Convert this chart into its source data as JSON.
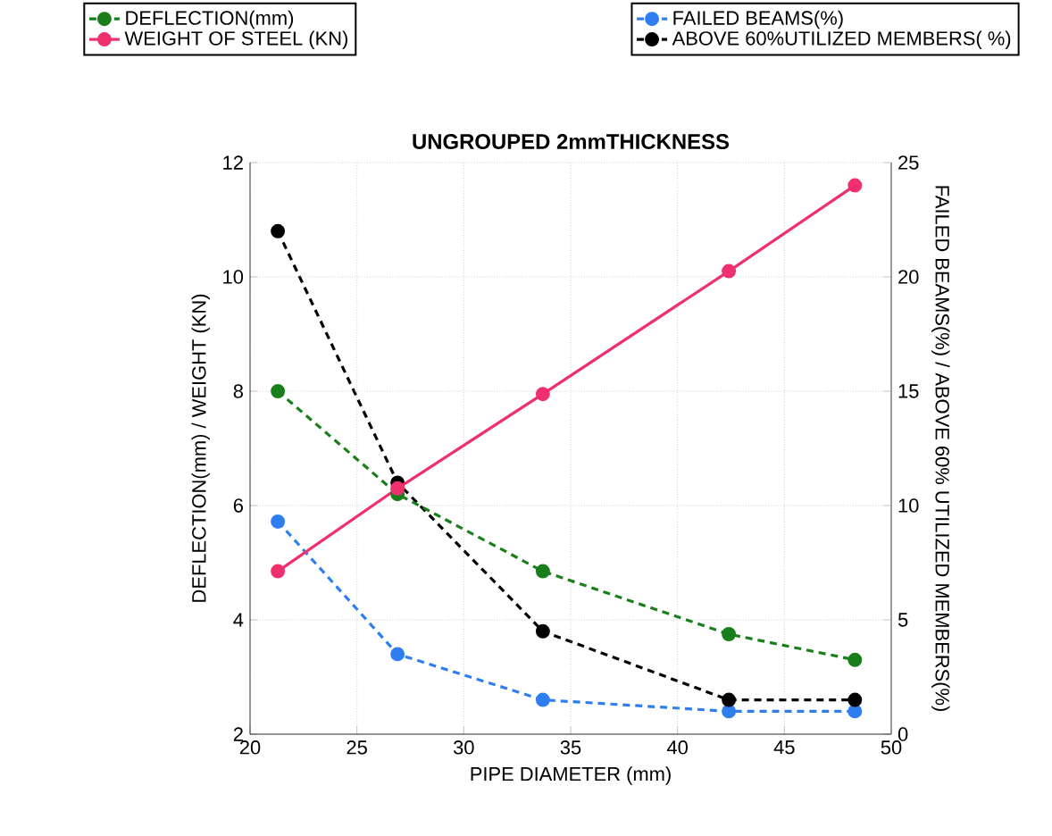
{
  "chart_data": {
    "type": "line",
    "title": "UNGROUPED 2mmTHICKNESS",
    "xlabel": "PIPE DIAMETER (mm)",
    "ylabel": "DEFLECTION(mm) / WEIGHT (KN)",
    "y2label": "FAILED BEAMS(%) / ABOVE 60% UTILIZED MEMBERS(%)",
    "x": [
      21.3,
      26.9,
      33.7,
      42.4,
      48.3
    ],
    "xlim": [
      20,
      50
    ],
    "xticks": [
      20,
      25,
      30,
      35,
      40,
      45,
      50
    ],
    "ylim": [
      2,
      12
    ],
    "yticks": [
      2,
      4,
      6,
      8,
      10,
      12
    ],
    "y2lim": [
      0,
      25
    ],
    "y2ticks": [
      0,
      5,
      10,
      15,
      20,
      25
    ],
    "grid": true,
    "legend": "top",
    "marker": "circle",
    "series": [
      {
        "name": "DEFLECTION(mm)",
        "color": "#1a7f1a",
        "line_style": "dashed",
        "values": [
          8.0,
          6.2,
          4.85,
          3.75,
          3.3
        ]
      },
      {
        "name": "WEIGHT OF STEEL (KN)",
        "color": "#f0306e",
        "line_style": "solid",
        "values": [
          4.85,
          6.3,
          7.95,
          10.1,
          11.6
        ]
      },
      {
        "name": "FAILED BEAMS(%)",
        "color": "#2f7ef0",
        "line_style": "dashed",
        "axis": "y2",
        "values": [
          9.3,
          3.5,
          1.5,
          1.0,
          1.0
        ]
      },
      {
        "name": "ABOVE 60%UTILIZED MEMBERS( %)",
        "color": "#000000",
        "line_style": "dashed",
        "axis": "y2",
        "values": [
          22.0,
          11.0,
          4.5,
          1.5,
          1.5
        ]
      }
    ]
  }
}
